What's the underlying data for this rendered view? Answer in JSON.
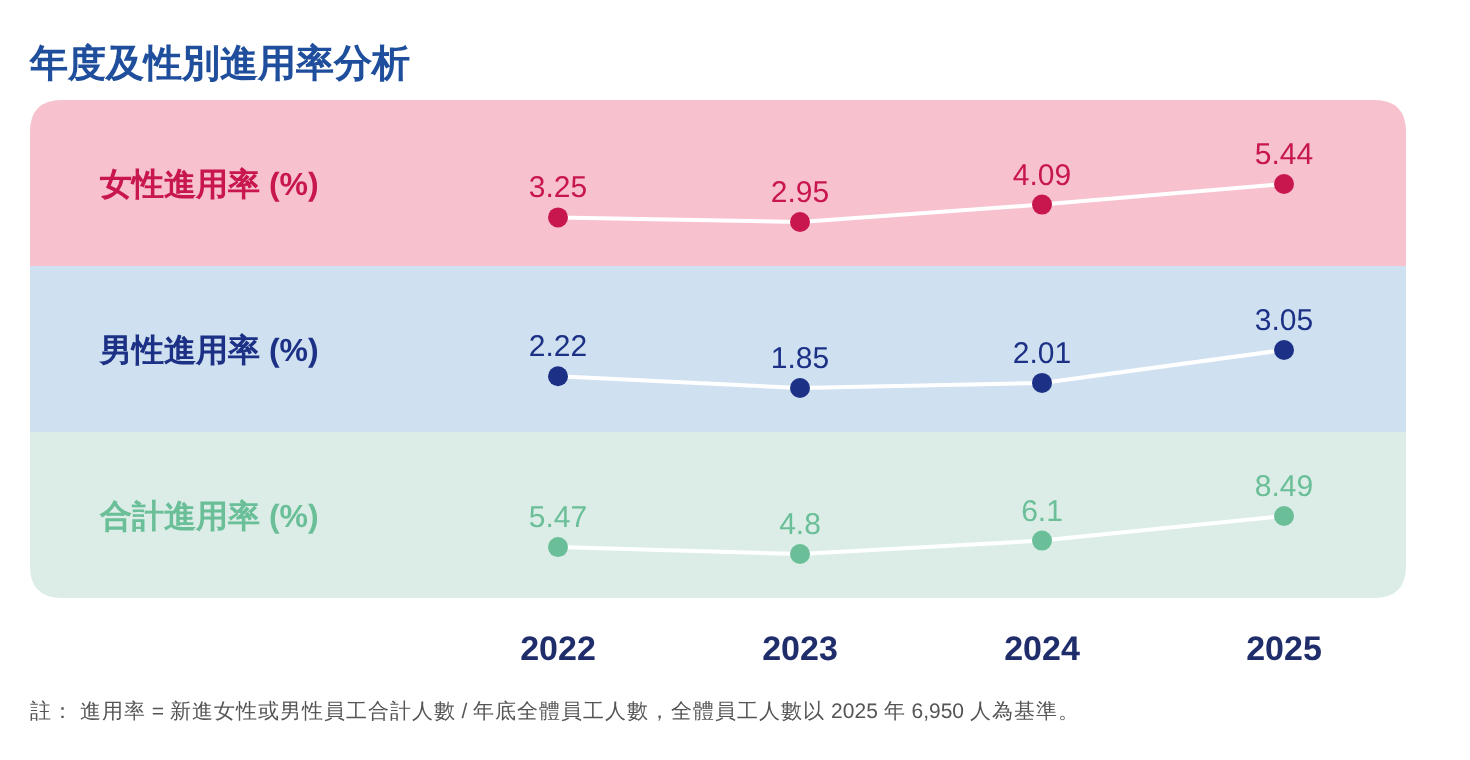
{
  "chart_data": [
    {
      "type": "line",
      "title": "年度及性別進用率分析",
      "ylabel": "女性進用率 (%)",
      "categories": [
        "2022",
        "2023",
        "2024",
        "2025"
      ],
      "series": [
        {
          "color": "#c8174f",
          "values": [
            3.25,
            2.95,
            4.09,
            5.44
          ]
        }
      ],
      "data_labels": true,
      "marker": "circle",
      "line_style": "solid",
      "tick_labels": false
    },
    {
      "type": "line",
      "ylabel": "男性進用率 (%)",
      "categories": [
        "2022",
        "2023",
        "2024",
        "2025"
      ],
      "series": [
        {
          "color": "#1c3185",
          "values": [
            2.22,
            1.85,
            2.01,
            3.05
          ]
        }
      ],
      "data_labels": true,
      "marker": "circle",
      "line_style": "solid",
      "tick_labels": false
    },
    {
      "type": "line",
      "ylabel": "合計進用率 (%)",
      "categories": [
        "2022",
        "2023",
        "2024",
        "2025"
      ],
      "series": [
        {
          "color": "#6bbf98",
          "values": [
            5.47,
            4.8,
            6.1,
            8.49
          ]
        }
      ],
      "data_labels": true,
      "marker": "circle",
      "line_style": "solid",
      "annotations": [
        "註： 進用率 = 新進女性或男性員工合計人數 / 年底全體員工人數，全體員工人數以 2025 年 6,950 人為基準。"
      ]
    }
  ]
}
